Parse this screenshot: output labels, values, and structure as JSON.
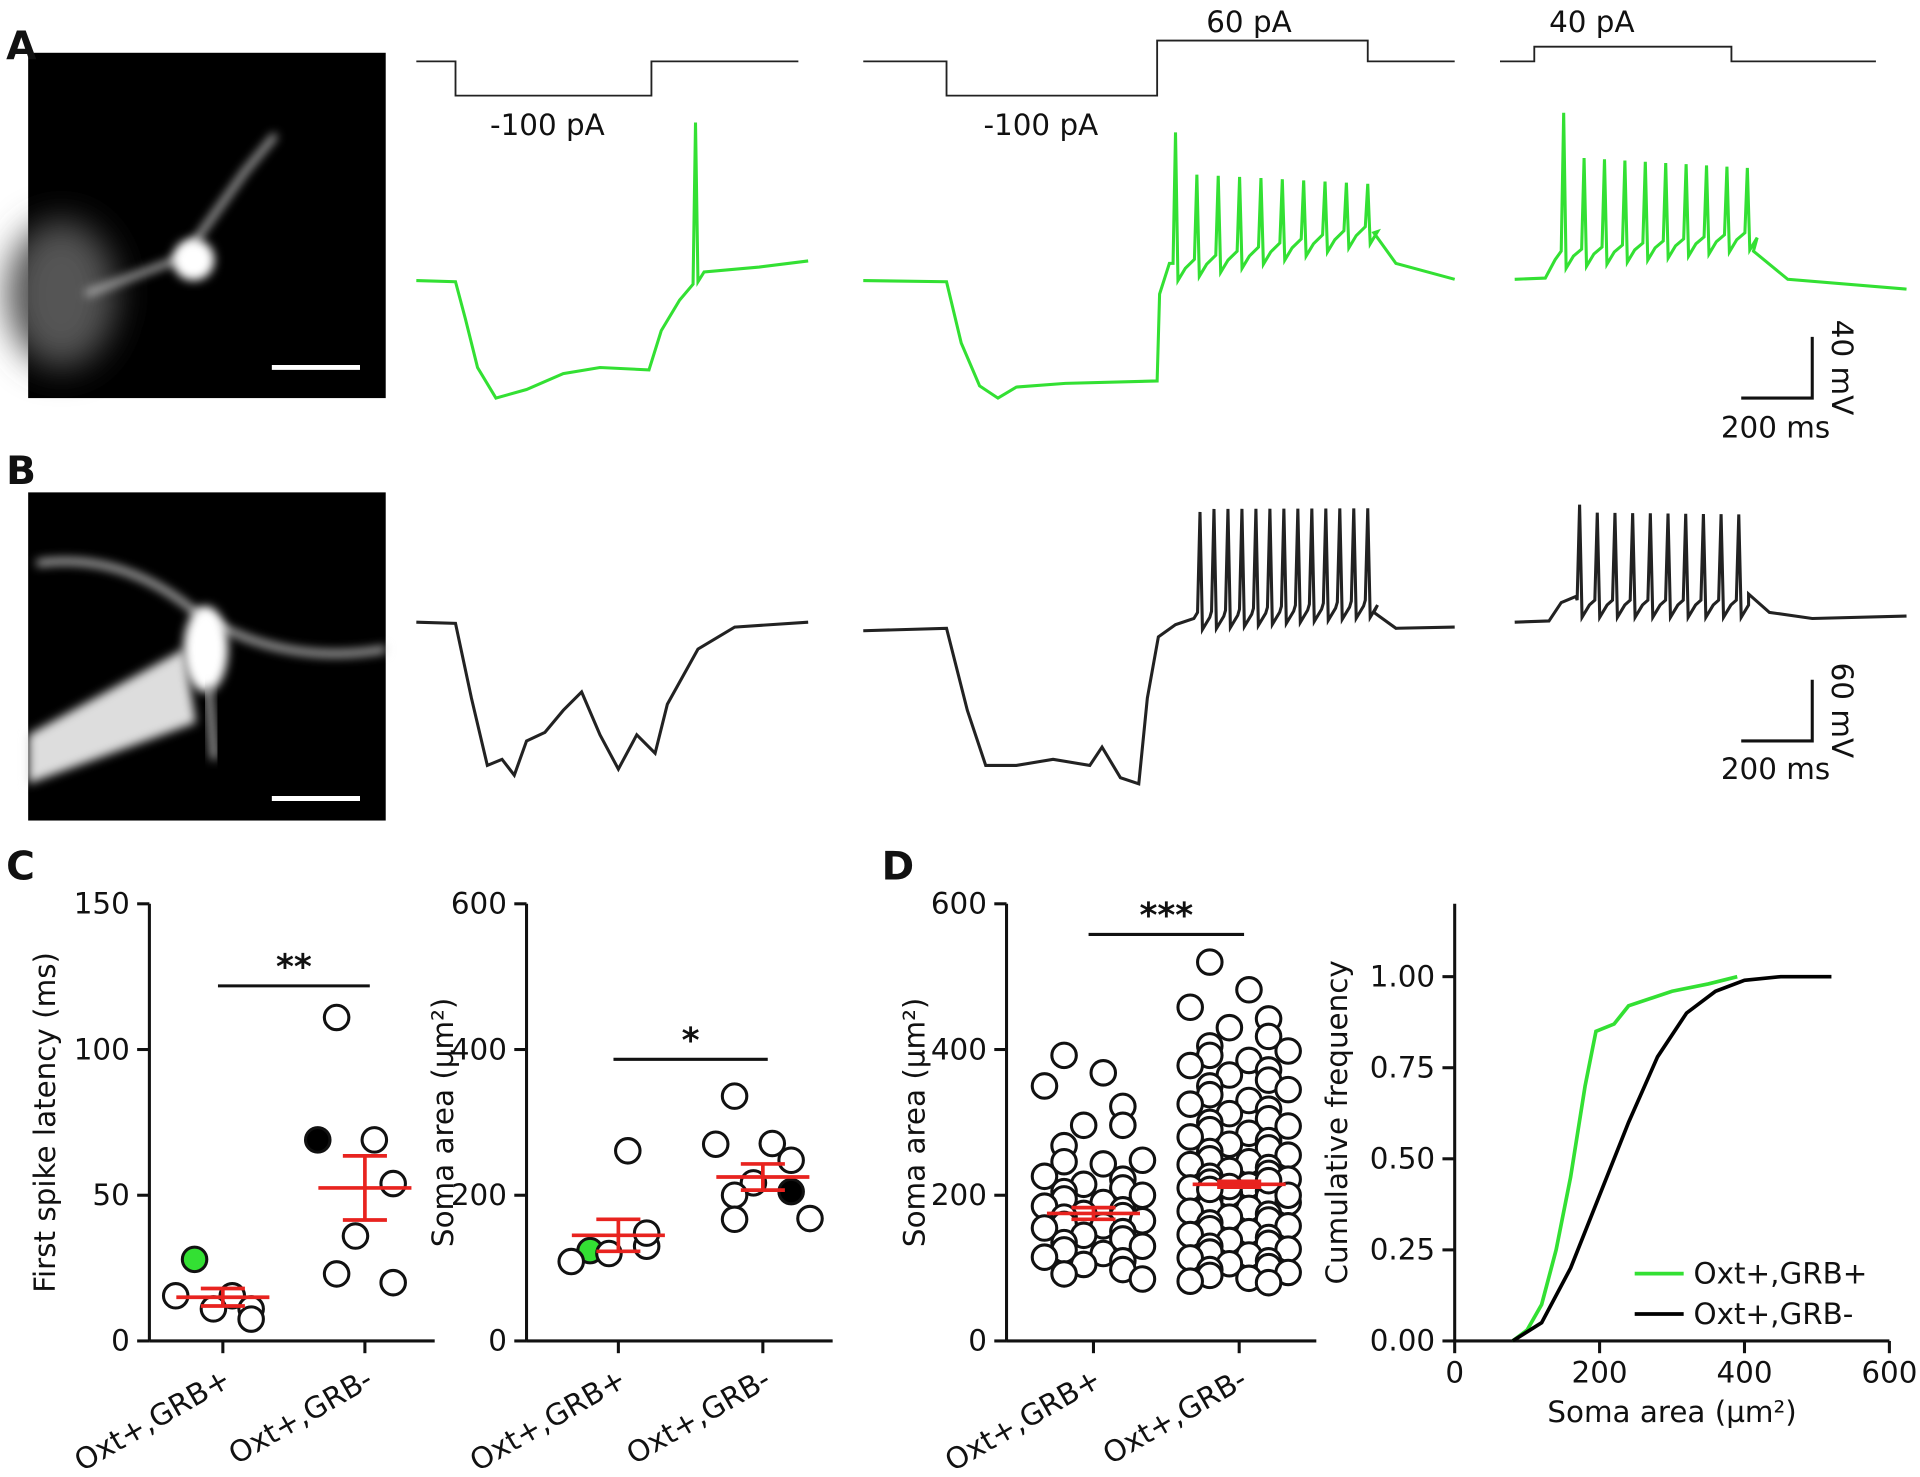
{
  "panel_labels": [
    "A",
    "B",
    "C",
    "D"
  ],
  "traces": {
    "step_labels": [
      "-100 pA",
      "-100 pA",
      "60 pA",
      "40 pA"
    ],
    "scale_a": {
      "y": "40 mV",
      "x": "200 ms"
    },
    "scale_b": {
      "y": "60 mV",
      "x": "200 ms"
    }
  },
  "chart_data": [
    {
      "type": "dot",
      "ylabel": "First spike latency (ms)",
      "ylim": [
        0,
        150
      ],
      "yticks": [
        0,
        50,
        100,
        150
      ],
      "categories": [
        "Oxt+,GRB+",
        "Oxt+,GRB-"
      ],
      "groups": [
        {
          "values": [
            28,
            15.5,
            15.5,
            11,
            11,
            7.5
          ],
          "mean": 15,
          "sem": 3,
          "highlight": [
            {
              "index": 0,
              "color": "#33e033"
            }
          ]
        },
        {
          "values": [
            111,
            69,
            69,
            54,
            36,
            20,
            23
          ],
          "mean": 52.5,
          "sem": 11,
          "highlight": [
            {
              "index": 2,
              "color": "#000000"
            }
          ]
        }
      ],
      "mean_color": "#e8231f",
      "significance": "**"
    },
    {
      "type": "dot",
      "ylabel": "Soma area (µm²)",
      "ylim": [
        0,
        600
      ],
      "yticks": [
        0,
        200,
        400,
        600
      ],
      "categories": [
        "Oxt+,GRB+",
        "Oxt+,GRB-"
      ],
      "groups": [
        {
          "values": [
            124,
            261,
            109,
            130,
            120,
            148
          ],
          "mean": 145,
          "sem": 22,
          "highlight": [
            {
              "index": 0,
              "color": "#33e033"
            }
          ]
        },
        {
          "values": [
            336,
            271,
            270,
            248,
            217,
            205,
            200,
            168,
            167
          ],
          "mean": 225,
          "sem": 18,
          "highlight": [
            {
              "index": 5,
              "color": "#000000"
            }
          ]
        }
      ],
      "mean_color": "#e8231f",
      "significance": "*"
    },
    {
      "type": "dot",
      "ylabel": "Soma area (µm²)",
      "ylim": [
        0,
        600
      ],
      "yticks": [
        0,
        200,
        400,
        600
      ],
      "categories": [
        "Oxt+,GRB+",
        "Oxt+,GRB-"
      ],
      "groups": [
        {
          "values": [
            392,
            368,
            350,
            322,
            296,
            296,
            268,
            248,
            246,
            243,
            226,
            222,
            215,
            210,
            205,
            200,
            195,
            190,
            185,
            180,
            175,
            172,
            170,
            165,
            160,
            158,
            155,
            150,
            145,
            140,
            135,
            130,
            125,
            120,
            115,
            110,
            105,
            98,
            92,
            85
          ],
          "mean": 175,
          "sem": 8
        },
        {
          "values": [
            520,
            482,
            458,
            442,
            430,
            418,
            405,
            398,
            392,
            385,
            378,
            372,
            365,
            358,
            350,
            345,
            338,
            330,
            325,
            318,
            312,
            305,
            300,
            295,
            290,
            285,
            280,
            275,
            270,
            265,
            260,
            255,
            250,
            246,
            242,
            238,
            234,
            230,
            226,
            222,
            218,
            214,
            210,
            206,
            202,
            198,
            194,
            190,
            186,
            182,
            178,
            174,
            170,
            166,
            162,
            158,
            154,
            150,
            146,
            142,
            138,
            134,
            130,
            126,
            122,
            118,
            114,
            110,
            106,
            102,
            98,
            94,
            90,
            86,
            82,
            80,
            212,
            220,
            208,
            200
          ],
          "mean": 215,
          "sem": 4
        }
      ],
      "mean_color": "#e8231f",
      "significance": "***"
    },
    {
      "type": "line",
      "ylabel": "Cumulative frequency",
      "xlabel": "Soma area (µm²)",
      "xlim": [
        0,
        600
      ],
      "xticks": [
        0,
        200,
        400,
        600
      ],
      "ylim": [
        0,
        1.2
      ],
      "yticks": [
        {
          "value": 0,
          "label": "0.00"
        },
        {
          "value": 0.25,
          "label": "0.25"
        },
        {
          "value": 0.5,
          "label": "0.50"
        },
        {
          "value": 0.75,
          "label": "0.75"
        },
        {
          "value": 1,
          "label": "1.00"
        }
      ],
      "legend": "lower right",
      "series": [
        {
          "name": "Oxt+,GRB+",
          "color": "#33e033",
          "x": [
            80,
            100,
            120,
            140,
            160,
            180,
            195,
            220,
            240,
            300,
            350,
            390
          ],
          "values": [
            0,
            0.03,
            0.1,
            0.25,
            0.45,
            0.7,
            0.85,
            0.87,
            0.92,
            0.96,
            0.98,
            1
          ]
        },
        {
          "name": "Oxt+,GRB-",
          "color": "#000000",
          "x": [
            80,
            120,
            160,
            200,
            240,
            280,
            320,
            360,
            400,
            450,
            520
          ],
          "values": [
            0,
            0.05,
            0.2,
            0.4,
            0.6,
            0.78,
            0.9,
            0.96,
            0.99,
            1,
            1
          ]
        }
      ]
    }
  ]
}
